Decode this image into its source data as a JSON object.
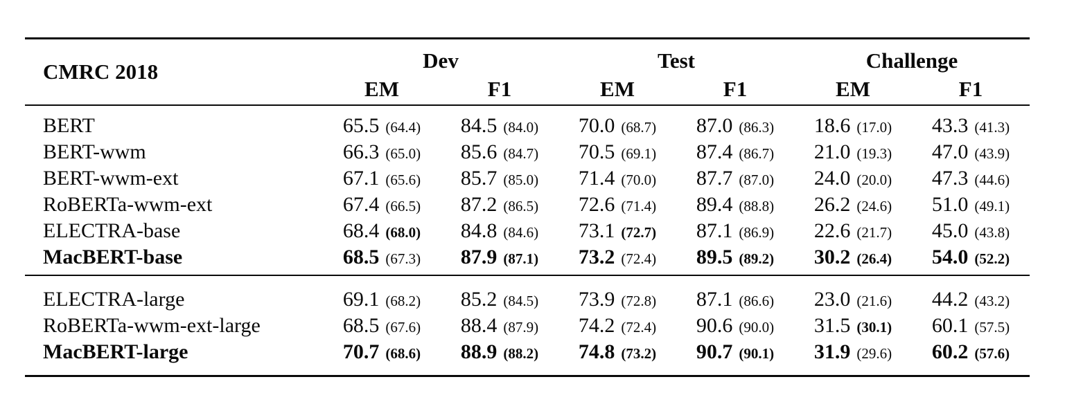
{
  "table": {
    "corner_label": "CMRC 2018",
    "col_groups": [
      {
        "label": "Dev"
      },
      {
        "label": "Test"
      },
      {
        "label": "Challenge"
      }
    ],
    "sub_headers": [
      "EM",
      "F1",
      "EM",
      "F1",
      "EM",
      "F1"
    ],
    "sections": [
      {
        "rows": [
          {
            "model": "BERT",
            "model_bold": false,
            "cells": [
              {
                "v": "65.5",
                "p": "(64.4)",
                "vb": false,
                "pb": false
              },
              {
                "v": "84.5",
                "p": "(84.0)",
                "vb": false,
                "pb": false
              },
              {
                "v": "70.0",
                "p": "(68.7)",
                "vb": false,
                "pb": false
              },
              {
                "v": "87.0",
                "p": "(86.3)",
                "vb": false,
                "pb": false
              },
              {
                "v": "18.6",
                "p": "(17.0)",
                "vb": false,
                "pb": false
              },
              {
                "v": "43.3",
                "p": "(41.3)",
                "vb": false,
                "pb": false
              }
            ]
          },
          {
            "model": "BERT-wwm",
            "model_bold": false,
            "cells": [
              {
                "v": "66.3",
                "p": "(65.0)",
                "vb": false,
                "pb": false
              },
              {
                "v": "85.6",
                "p": "(84.7)",
                "vb": false,
                "pb": false
              },
              {
                "v": "70.5",
                "p": "(69.1)",
                "vb": false,
                "pb": false
              },
              {
                "v": "87.4",
                "p": "(86.7)",
                "vb": false,
                "pb": false
              },
              {
                "v": "21.0",
                "p": "(19.3)",
                "vb": false,
                "pb": false
              },
              {
                "v": "47.0",
                "p": "(43.9)",
                "vb": false,
                "pb": false
              }
            ]
          },
          {
            "model": "BERT-wwm-ext",
            "model_bold": false,
            "cells": [
              {
                "v": "67.1",
                "p": "(65.6)",
                "vb": false,
                "pb": false
              },
              {
                "v": "85.7",
                "p": "(85.0)",
                "vb": false,
                "pb": false
              },
              {
                "v": "71.4",
                "p": "(70.0)",
                "vb": false,
                "pb": false
              },
              {
                "v": "87.7",
                "p": "(87.0)",
                "vb": false,
                "pb": false
              },
              {
                "v": "24.0",
                "p": "(20.0)",
                "vb": false,
                "pb": false
              },
              {
                "v": "47.3",
                "p": "(44.6)",
                "vb": false,
                "pb": false
              }
            ]
          },
          {
            "model": "RoBERTa-wwm-ext",
            "model_bold": false,
            "cells": [
              {
                "v": "67.4",
                "p": "(66.5)",
                "vb": false,
                "pb": false
              },
              {
                "v": "87.2",
                "p": "(86.5)",
                "vb": false,
                "pb": false
              },
              {
                "v": "72.6",
                "p": "(71.4)",
                "vb": false,
                "pb": false
              },
              {
                "v": "89.4",
                "p": "(88.8)",
                "vb": false,
                "pb": false
              },
              {
                "v": "26.2",
                "p": "(24.6)",
                "vb": false,
                "pb": false
              },
              {
                "v": "51.0",
                "p": "(49.1)",
                "vb": false,
                "pb": false
              }
            ]
          },
          {
            "model": "ELECTRA-base",
            "model_bold": false,
            "cells": [
              {
                "v": "68.4",
                "p": "(68.0)",
                "vb": false,
                "pb": true
              },
              {
                "v": "84.8",
                "p": "(84.6)",
                "vb": false,
                "pb": false
              },
              {
                "v": "73.1",
                "p": "(72.7)",
                "vb": false,
                "pb": true
              },
              {
                "v": "87.1",
                "p": "(86.9)",
                "vb": false,
                "pb": false
              },
              {
                "v": "22.6",
                "p": "(21.7)",
                "vb": false,
                "pb": false
              },
              {
                "v": "45.0",
                "p": "(43.8)",
                "vb": false,
                "pb": false
              }
            ]
          },
          {
            "model": "MacBERT-base",
            "model_bold": true,
            "cells": [
              {
                "v": "68.5",
                "p": "(67.3)",
                "vb": true,
                "pb": false
              },
              {
                "v": "87.9",
                "p": "(87.1)",
                "vb": true,
                "pb": true
              },
              {
                "v": "73.2",
                "p": "(72.4)",
                "vb": true,
                "pb": false
              },
              {
                "v": "89.5",
                "p": "(89.2)",
                "vb": true,
                "pb": true
              },
              {
                "v": "30.2",
                "p": "(26.4)",
                "vb": true,
                "pb": true
              },
              {
                "v": "54.0",
                "p": "(52.2)",
                "vb": true,
                "pb": true
              }
            ]
          }
        ]
      },
      {
        "rows": [
          {
            "model": "ELECTRA-large",
            "model_bold": false,
            "cells": [
              {
                "v": "69.1",
                "p": "(68.2)",
                "vb": false,
                "pb": false
              },
              {
                "v": "85.2",
                "p": "(84.5)",
                "vb": false,
                "pb": false
              },
              {
                "v": "73.9",
                "p": "(72.8)",
                "vb": false,
                "pb": false
              },
              {
                "v": "87.1",
                "p": "(86.6)",
                "vb": false,
                "pb": false
              },
              {
                "v": "23.0",
                "p": "(21.6)",
                "vb": false,
                "pb": false
              },
              {
                "v": "44.2",
                "p": "(43.2)",
                "vb": false,
                "pb": false
              }
            ]
          },
          {
            "model": "RoBERTa-wwm-ext-large",
            "model_bold": false,
            "cells": [
              {
                "v": "68.5",
                "p": "(67.6)",
                "vb": false,
                "pb": false
              },
              {
                "v": "88.4",
                "p": "(87.9)",
                "vb": false,
                "pb": false
              },
              {
                "v": "74.2",
                "p": "(72.4)",
                "vb": false,
                "pb": false
              },
              {
                "v": "90.6",
                "p": "(90.0)",
                "vb": false,
                "pb": false
              },
              {
                "v": "31.5",
                "p": "(30.1)",
                "vb": false,
                "pb": true
              },
              {
                "v": "60.1",
                "p": "(57.5)",
                "vb": false,
                "pb": false
              }
            ]
          },
          {
            "model": "MacBERT-large",
            "model_bold": true,
            "cells": [
              {
                "v": "70.7",
                "p": "(68.6)",
                "vb": true,
                "pb": true
              },
              {
                "v": "88.9",
                "p": "(88.2)",
                "vb": true,
                "pb": true
              },
              {
                "v": "74.8",
                "p": "(73.2)",
                "vb": true,
                "pb": true
              },
              {
                "v": "90.7",
                "p": "(90.1)",
                "vb": true,
                "pb": true
              },
              {
                "v": "31.9",
                "p": "(29.6)",
                "vb": true,
                "pb": false
              },
              {
                "v": "60.2",
                "p": "(57.6)",
                "vb": true,
                "pb": true
              }
            ]
          }
        ]
      }
    ]
  }
}
